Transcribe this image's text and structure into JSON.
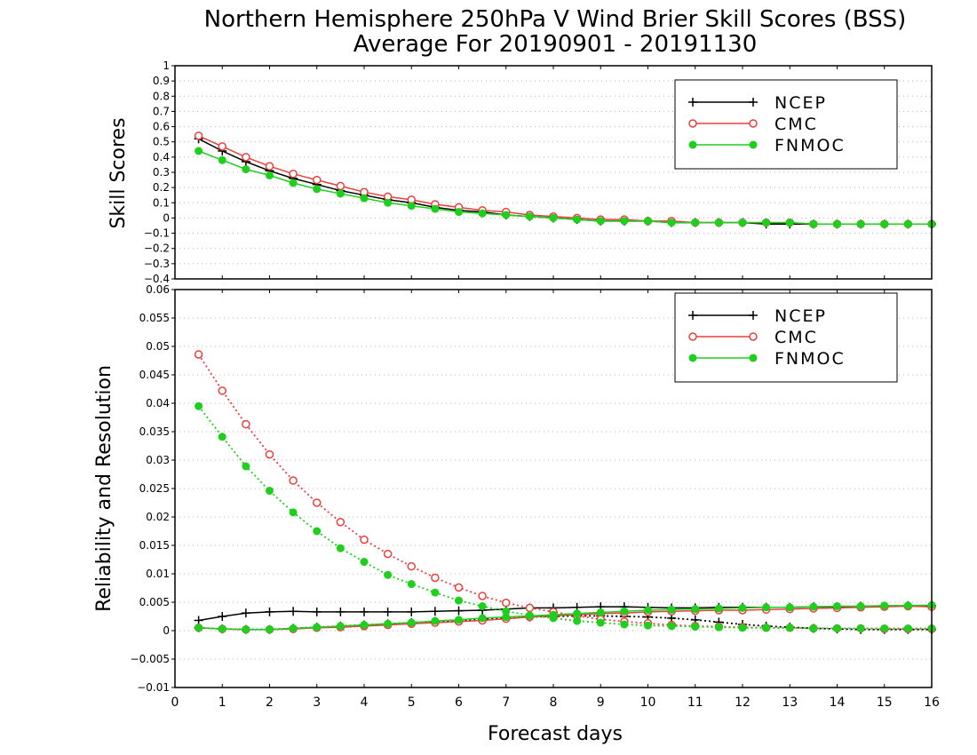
{
  "title_line1": "Northern Hemisphere 250hPa V Wind Brier Skill Scores (BSS)",
  "title_line2": "Average For 20190901 - 20191130",
  "colors": {
    "NCEP": "#000000",
    "CMC": "#e8403c",
    "FNMOC": "#1ecf1e"
  },
  "chart_data": [
    {
      "type": "line",
      "ylabel": "Skill Scores",
      "xlabel": "Forecast days",
      "xlim": [
        0,
        16
      ],
      "ylim": [
        -0.4,
        1
      ],
      "x_ticks": [
        0,
        1,
        2,
        3,
        4,
        5,
        6,
        7,
        8,
        9,
        10,
        11,
        12,
        13,
        14,
        15,
        16
      ],
      "y_ticks": [
        -0.4,
        -0.3,
        -0.2,
        -0.1,
        0,
        0.1,
        0.2,
        0.3,
        0.4,
        0.5,
        0.6,
        0.7,
        0.8,
        0.9,
        1
      ],
      "grid": true,
      "legend_position": "top-right",
      "x": [
        0.5,
        1,
        1.5,
        2,
        2.5,
        3,
        3.5,
        4,
        4.5,
        5,
        5.5,
        6,
        6.5,
        7,
        7.5,
        8,
        8.5,
        9,
        9.5,
        10,
        10.5,
        11,
        11.5,
        12,
        12.5,
        13,
        13.5,
        14,
        14.5,
        15,
        15.5,
        16
      ],
      "series": [
        {
          "name": "NCEP",
          "marker": "plus",
          "values": [
            0.52,
            0.44,
            0.37,
            0.31,
            0.26,
            0.22,
            0.18,
            0.15,
            0.12,
            0.1,
            0.07,
            0.05,
            0.04,
            0.02,
            0.01,
            0.0,
            -0.01,
            -0.02,
            -0.02,
            -0.02,
            -0.03,
            -0.03,
            -0.03,
            -0.03,
            -0.04,
            -0.04,
            -0.04,
            -0.04,
            -0.04,
            -0.04,
            -0.04,
            -0.04
          ]
        },
        {
          "name": "CMC",
          "marker": "open-circle",
          "values": [
            0.54,
            0.47,
            0.4,
            0.34,
            0.29,
            0.25,
            0.21,
            0.17,
            0.14,
            0.12,
            0.09,
            0.07,
            0.05,
            0.04,
            0.02,
            0.01,
            0.0,
            -0.01,
            -0.01,
            -0.02,
            -0.02,
            -0.03,
            -0.03,
            -0.03,
            -0.03,
            -0.03,
            -0.04,
            -0.04,
            -0.04,
            -0.04,
            -0.04,
            -0.04
          ]
        },
        {
          "name": "FNMOC",
          "marker": "filled-circle",
          "values": [
            0.44,
            0.38,
            0.32,
            0.28,
            0.23,
            0.19,
            0.16,
            0.13,
            0.1,
            0.08,
            0.06,
            0.04,
            0.03,
            0.02,
            0.01,
            0.0,
            -0.01,
            -0.02,
            -0.02,
            -0.02,
            -0.03,
            -0.03,
            -0.03,
            -0.03,
            -0.03,
            -0.03,
            -0.04,
            -0.04,
            -0.04,
            -0.04,
            -0.04,
            -0.04
          ]
        }
      ]
    },
    {
      "type": "line",
      "ylabel": "Reliability and Resolution",
      "xlabel": "Forecast days",
      "xlim": [
        0,
        16
      ],
      "ylim": [
        -0.01,
        0.06
      ],
      "x_ticks": [
        0,
        1,
        2,
        3,
        4,
        5,
        6,
        7,
        8,
        9,
        10,
        11,
        12,
        13,
        14,
        15,
        16
      ],
      "y_ticks": [
        -0.01,
        -0.005,
        0,
        0.005,
        0.01,
        0.015,
        0.02,
        0.025,
        0.03,
        0.035,
        0.04,
        0.045,
        0.05,
        0.055,
        0.06
      ],
      "grid": true,
      "legend_position": "top-right",
      "x": [
        0.5,
        1,
        1.5,
        2,
        2.5,
        3,
        3.5,
        4,
        4.5,
        5,
        5.5,
        6,
        6.5,
        7,
        7.5,
        8,
        8.5,
        9,
        9.5,
        10,
        10.5,
        11,
        11.5,
        12,
        12.5,
        13,
        13.5,
        14,
        14.5,
        15,
        15.5,
        16
      ],
      "series": [
        {
          "name": "NCEP",
          "marker": "plus",
          "metric": "reliability",
          "style": "solid",
          "values": [
            0.0018,
            0.0025,
            0.0031,
            0.0033,
            0.0034,
            0.0033,
            0.0033,
            0.0033,
            0.0033,
            0.0033,
            0.0034,
            0.0035,
            0.0036,
            0.0038,
            0.004,
            0.004,
            0.0041,
            0.0042,
            0.0042,
            0.0041,
            0.004,
            0.004,
            0.0041,
            0.0041,
            0.0041,
            0.0041,
            0.0042,
            0.0042,
            0.0043,
            0.0043,
            0.0044,
            0.0044
          ]
        },
        {
          "name": "NCEP",
          "marker": "plus",
          "metric": "resolution",
          "style": "dotted",
          "values": [
            0.0005,
            0.0003,
            0.0002,
            0.0002,
            0.0004,
            0.0006,
            0.0008,
            0.001,
            0.0012,
            0.0014,
            0.0016,
            0.0018,
            0.002,
            0.0022,
            0.0024,
            0.0025,
            0.0026,
            0.0026,
            0.0025,
            0.0024,
            0.0022,
            0.0019,
            0.0015,
            0.0011,
            0.0008,
            0.0006,
            0.0004,
            0.0003,
            0.0002,
            0.0002,
            0.0002,
            0.0002
          ]
        },
        {
          "name": "CMC",
          "marker": "open-circle",
          "metric": "reliability",
          "style": "solid",
          "values": [
            0.0005,
            0.0003,
            0.0002,
            0.0002,
            0.0003,
            0.0005,
            0.0006,
            0.0008,
            0.001,
            0.0012,
            0.0014,
            0.0016,
            0.0018,
            0.0021,
            0.0024,
            0.0026,
            0.0028,
            0.003,
            0.0031,
            0.0033,
            0.0034,
            0.0035,
            0.0036,
            0.0036,
            0.0037,
            0.0038,
            0.0039,
            0.004,
            0.0041,
            0.0042,
            0.0043,
            0.0042
          ]
        },
        {
          "name": "CMC",
          "marker": "open-circle",
          "metric": "resolution",
          "style": "dotted",
          "values": [
            0.0486,
            0.0422,
            0.0363,
            0.031,
            0.0264,
            0.0225,
            0.0191,
            0.016,
            0.0135,
            0.0113,
            0.0093,
            0.0076,
            0.0061,
            0.0049,
            0.004,
            0.0033,
            0.0026,
            0.002,
            0.0016,
            0.0013,
            0.001,
            0.0008,
            0.0007,
            0.0006,
            0.0005,
            0.0005,
            0.0004,
            0.0004,
            0.0004,
            0.0003,
            0.0003,
            0.0003
          ]
        },
        {
          "name": "FNMOC",
          "marker": "filled-circle",
          "metric": "reliability",
          "style": "solid",
          "values": [
            0.0005,
            0.0003,
            0.0002,
            0.0002,
            0.0004,
            0.0006,
            0.0008,
            0.001,
            0.0012,
            0.0014,
            0.0017,
            0.0019,
            0.0022,
            0.0024,
            0.0026,
            0.0028,
            0.003,
            0.0032,
            0.0034,
            0.0036,
            0.0037,
            0.0038,
            0.0039,
            0.004,
            0.0041,
            0.0041,
            0.0042,
            0.0043,
            0.0043,
            0.0044,
            0.0044,
            0.0045
          ]
        },
        {
          "name": "FNMOC",
          "marker": "filled-circle",
          "metric": "resolution",
          "style": "dotted",
          "values": [
            0.0395,
            0.0341,
            0.0289,
            0.0246,
            0.0208,
            0.0175,
            0.0145,
            0.0121,
            0.0098,
            0.0082,
            0.0067,
            0.0053,
            0.0043,
            0.0034,
            0.0027,
            0.0022,
            0.0017,
            0.0014,
            0.0011,
            0.0009,
            0.0008,
            0.0007,
            0.0006,
            0.0005,
            0.0005,
            0.0005,
            0.0004,
            0.0004,
            0.0004,
            0.0004,
            0.0004,
            0.0004
          ]
        }
      ]
    }
  ]
}
